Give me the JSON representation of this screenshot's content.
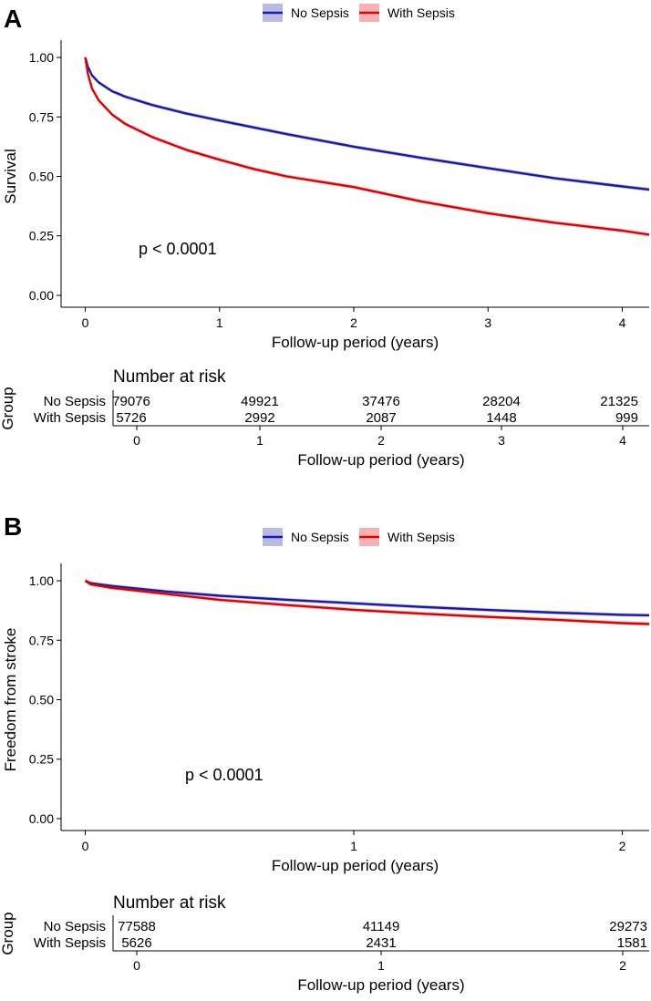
{
  "chart_data": [
    {
      "type": "line",
      "panel_label": "A",
      "legend": {
        "placement": "top",
        "entries": [
          "No Sepsis",
          "With Sepsis"
        ]
      },
      "xlabel": "Follow-up period (years)",
      "ylabel": "Survival",
      "xlim": [
        -0.18,
        4.2
      ],
      "ylim": [
        -0.05,
        1.05
      ],
      "xticks": [
        "0",
        "1",
        "2",
        "3",
        "4"
      ],
      "yticks": [
        "0.00",
        "0.25",
        "0.50",
        "0.75",
        "1.00"
      ],
      "annotation": "p < 0.0001",
      "series": [
        {
          "name": "No Sepsis",
          "color": "#1a1aa8",
          "x": [
            0,
            0.02,
            0.05,
            0.1,
            0.2,
            0.3,
            0.5,
            0.75,
            1,
            1.5,
            2,
            2.5,
            3,
            3.5,
            4,
            4.2
          ],
          "y": [
            1.0,
            0.96,
            0.925,
            0.895,
            0.858,
            0.835,
            0.8,
            0.765,
            0.735,
            0.678,
            0.625,
            0.578,
            0.535,
            0.492,
            0.458,
            0.445
          ]
        },
        {
          "name": "With Sepsis",
          "color": "#e00000",
          "x": [
            0,
            0.02,
            0.05,
            0.1,
            0.2,
            0.3,
            0.5,
            0.75,
            1,
            1.25,
            1.5,
            2,
            2.5,
            3,
            3.5,
            4,
            4.2
          ],
          "y": [
            1.0,
            0.93,
            0.87,
            0.82,
            0.76,
            0.72,
            0.665,
            0.612,
            0.57,
            0.532,
            0.5,
            0.455,
            0.395,
            0.345,
            0.305,
            0.272,
            0.255
          ]
        }
      ],
      "risk_table": {
        "title": "Number at risk",
        "group_label": "Group",
        "xlabel": "Follow-up period (years)",
        "xticks": [
          "0",
          "1",
          "2",
          "3",
          "4"
        ],
        "rows": [
          {
            "name": "No Sepsis",
            "color": "#1a1aa8",
            "values": [
              "79076",
              "49921",
              "37476",
              "28204",
              "21325"
            ]
          },
          {
            "name": "With Sepsis",
            "color": "#e00000",
            "values": [
              "5726",
              "2992",
              "2087",
              "1448",
              "999"
            ]
          }
        ]
      }
    },
    {
      "type": "line",
      "panel_label": "B",
      "legend": {
        "placement": "top",
        "entries": [
          "No Sepsis",
          "With Sepsis"
        ]
      },
      "xlabel": "Follow-up period (years)",
      "ylabel": "Freedom from stroke",
      "xlim": [
        -0.09,
        2.1
      ],
      "ylim": [
        -0.05,
        1.05
      ],
      "xticks": [
        "0",
        "1",
        "2"
      ],
      "yticks": [
        "0.00",
        "0.25",
        "0.50",
        "0.75",
        "1.00"
      ],
      "annotation": "p < 0.0001",
      "series": [
        {
          "name": "No Sepsis",
          "color": "#1a1aa8",
          "x": [
            0,
            0.02,
            0.1,
            0.3,
            0.5,
            0.75,
            1,
            1.25,
            1.5,
            1.75,
            2,
            2.1
          ],
          "y": [
            1.0,
            0.99,
            0.978,
            0.955,
            0.937,
            0.92,
            0.905,
            0.89,
            0.877,
            0.866,
            0.857,
            0.855
          ]
        },
        {
          "name": "With Sepsis",
          "color": "#e00000",
          "x": [
            0,
            0.02,
            0.1,
            0.3,
            0.5,
            0.75,
            1,
            1.25,
            1.5,
            1.75,
            2,
            2.1
          ],
          "y": [
            1.0,
            0.985,
            0.97,
            0.945,
            0.92,
            0.898,
            0.878,
            0.862,
            0.848,
            0.836,
            0.822,
            0.818
          ]
        }
      ],
      "risk_table": {
        "title": "Number at risk",
        "group_label": "Group",
        "xlabel": "Follow-up period (years)",
        "xticks": [
          "0",
          "1",
          "2"
        ],
        "rows": [
          {
            "name": "No Sepsis",
            "color": "#1a1aa8",
            "values": [
              "77588",
              "41149",
              "29273"
            ]
          },
          {
            "name": "With Sepsis",
            "color": "#e00000",
            "values": [
              "5626",
              "2431",
              "1581"
            ]
          }
        ]
      }
    }
  ]
}
